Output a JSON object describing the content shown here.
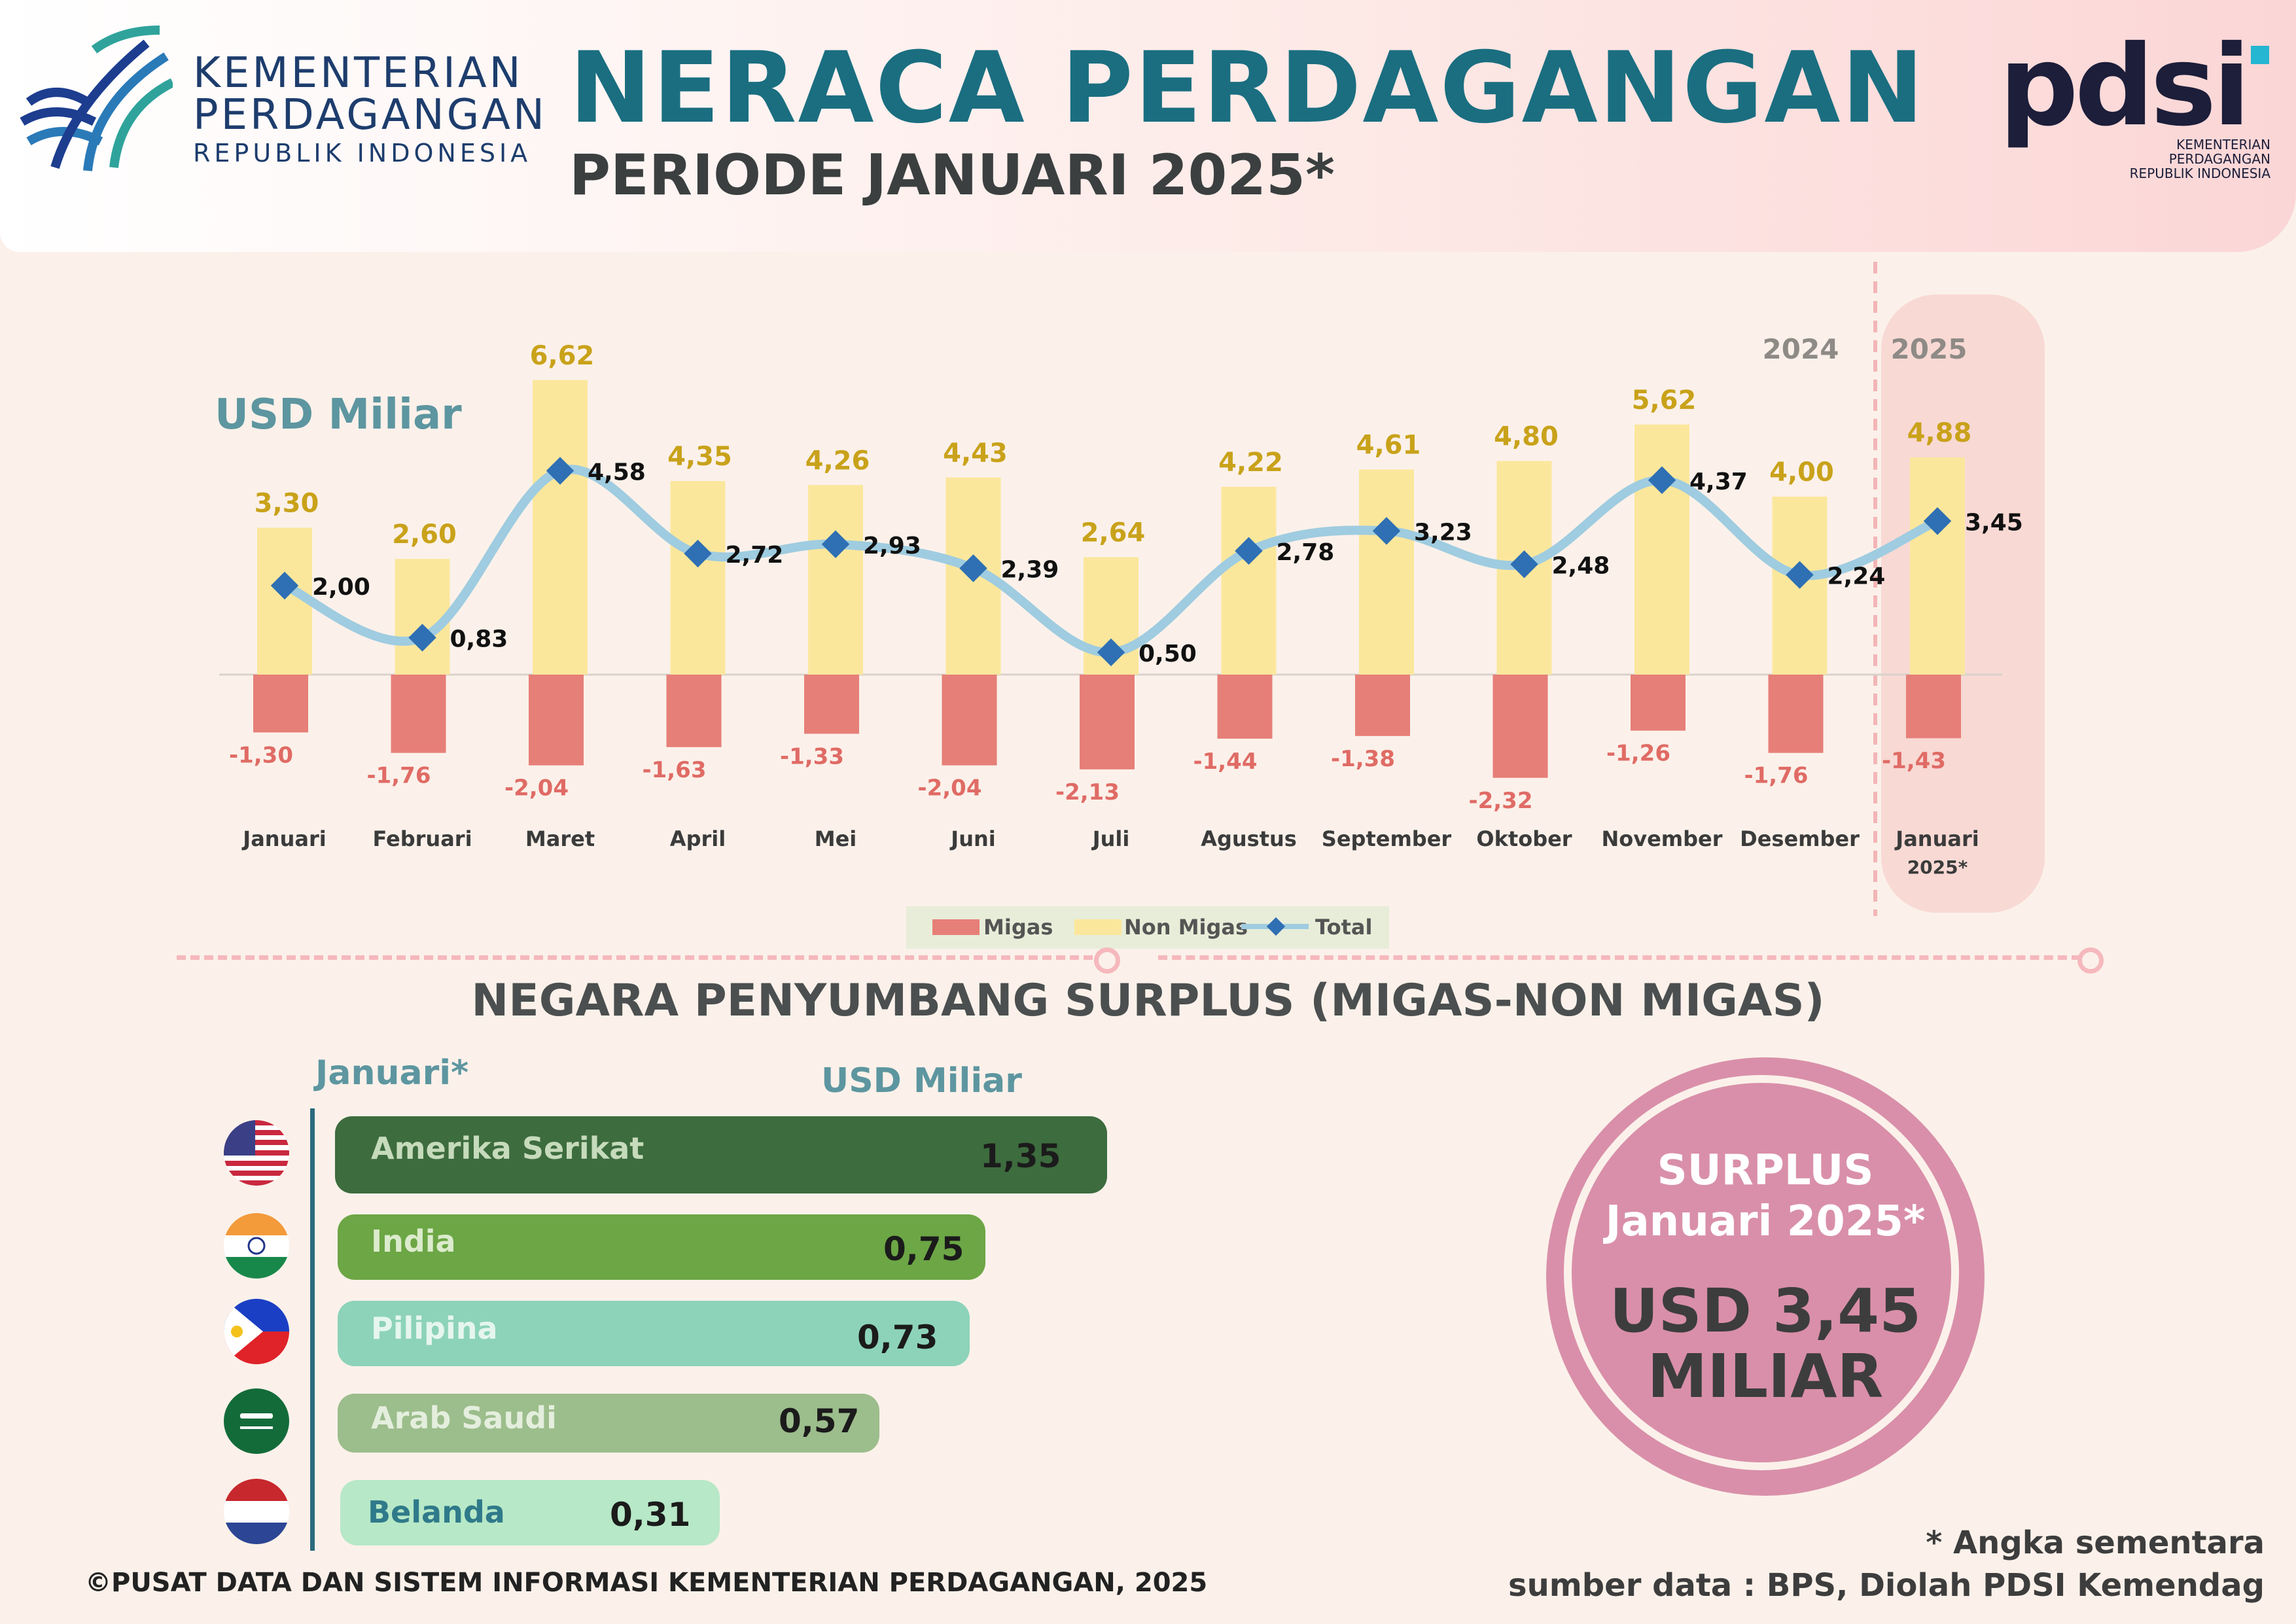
{
  "header": {
    "ministry_line1": "KEMENTERIAN",
    "ministry_line2": "PERDAGANGAN",
    "ministry_line3": "REPUBLIK INDONESIA",
    "title": "NERACA PERDAGANGAN",
    "subtitle": "PERIODE JANUARI 2025*",
    "pdsi_logo_text": "pdsi",
    "pdsi_sub1": "KEMENTERIAN PERDAGANGAN",
    "pdsi_sub2": "REPUBLIK INDONESIA"
  },
  "chart_data": {
    "type": "bar",
    "ylabel": "USD Miliar",
    "year_labels": [
      "2024",
      "2025"
    ],
    "categories": [
      "Januari",
      "Februari",
      "Maret",
      "April",
      "Mei",
      "Juni",
      "Juli",
      "Agustus",
      "September",
      "Oktober",
      "November",
      "Desember",
      "Januari 2025*"
    ],
    "series": [
      {
        "name": "Migas",
        "type": "bar",
        "color": "#e67f78",
        "values": [
          -1.3,
          -1.76,
          -2.04,
          -1.63,
          -1.33,
          -2.04,
          -2.13,
          -1.44,
          -1.38,
          -2.32,
          -1.26,
          -1.76,
          -1.43
        ],
        "labels": [
          "-1,30",
          "-1,76",
          "-2,04",
          "-1,63",
          "-1,33",
          "-2,04",
          "-2,13",
          "-1,44",
          "-1,38",
          "-2,32",
          "-1,26",
          "-1,76",
          "-1,43"
        ]
      },
      {
        "name": "Non Migas",
        "type": "bar",
        "color": "#fbe79c",
        "values": [
          3.3,
          2.6,
          6.62,
          4.35,
          4.26,
          4.43,
          2.64,
          4.22,
          4.61,
          4.8,
          5.62,
          4.0,
          4.88
        ],
        "labels": [
          "3,30",
          "2,60",
          "6,62",
          "4,35",
          "4,26",
          "4,43",
          "2,64",
          "4,22",
          "4,61",
          "4,80",
          "5,62",
          "4,00",
          "4,88"
        ]
      },
      {
        "name": "Total",
        "type": "line",
        "color": "#9fcce0",
        "marker_color": "#2f6fb4",
        "values": [
          2.0,
          0.83,
          4.58,
          2.72,
          2.93,
          2.39,
          0.5,
          2.78,
          3.23,
          2.48,
          4.37,
          2.24,
          3.45
        ],
        "labels": [
          "2,00",
          "0,83",
          "4,58",
          "2,72",
          "2,93",
          "2,39",
          "0,50",
          "2,78",
          "3,23",
          "2,48",
          "4,37",
          "2,24",
          "3,45"
        ]
      }
    ]
  },
  "surplus_section": {
    "title": "NEGARA PENYUMBANG SURPLUS (MIGAS-NON MIGAS)",
    "period_label": "Januari*",
    "unit_label": "USD Miliar",
    "countries": [
      {
        "name": "Amerika Serikat",
        "value": 1.35,
        "label": "1,35",
        "flag": "us-flag"
      },
      {
        "name": "India",
        "value": 0.75,
        "label": "0,75",
        "flag": "india-flag"
      },
      {
        "name": "Pilipina",
        "value": 0.73,
        "label": "0,73",
        "flag": "philippines-flag"
      },
      {
        "name": "Arab Saudi",
        "value": 0.57,
        "label": "0,57",
        "flag": "saudi-flag"
      },
      {
        "name": "Belanda",
        "value": 0.31,
        "label": "0,31",
        "flag": "netherlands-flag"
      }
    ]
  },
  "surplus_badge": {
    "line1": "SURPLUS",
    "line2": "Januari 2025*",
    "line3": "USD 3,45",
    "line4": "MILIAR"
  },
  "footer": {
    "copyright": "©PUSAT DATA DAN SISTEM INFORMASI KEMENTERIAN PERDAGANGAN, 2025",
    "note": "* Angka sementara",
    "source": "sumber data : BPS, Diolah PDSI Kemendag"
  }
}
